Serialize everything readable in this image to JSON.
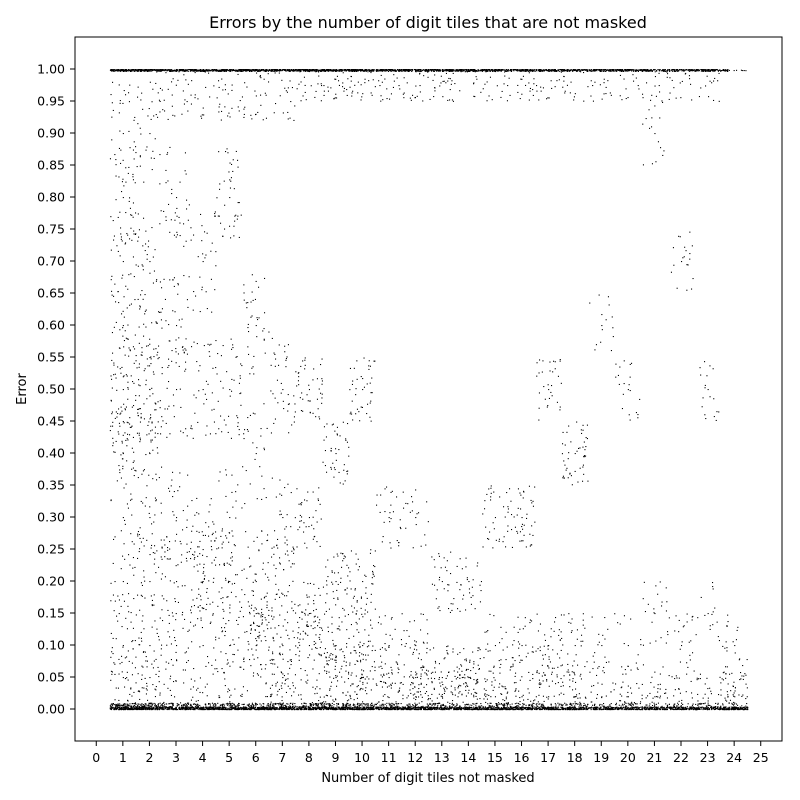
{
  "chart_data": {
    "type": "scatter",
    "title": "Errors by the number of digit tiles that are not masked",
    "xlabel": "Number of digit tiles not masked",
    "ylabel": "Error",
    "xlim": [
      -0.8,
      25.8
    ],
    "ylim": [
      -0.05,
      1.05
    ],
    "x_ticks": [
      0,
      1,
      2,
      3,
      4,
      5,
      6,
      7,
      8,
      9,
      10,
      11,
      12,
      13,
      14,
      15,
      16,
      17,
      18,
      19,
      20,
      21,
      22,
      23,
      24,
      25
    ],
    "x_tick_labels": [
      "0",
      "1",
      "2",
      "3",
      "4",
      "5",
      "6",
      "7",
      "8",
      "9",
      "10",
      "11",
      "12",
      "13",
      "14",
      "15",
      "16",
      "17",
      "18",
      "19",
      "20",
      "21",
      "22",
      "23",
      "24",
      "25"
    ],
    "y_ticks": [
      0.0,
      0.05,
      0.1,
      0.15,
      0.2,
      0.25,
      0.3,
      0.35,
      0.4,
      0.45,
      0.5,
      0.55,
      0.6,
      0.65,
      0.7,
      0.75,
      0.8,
      0.85,
      0.9,
      0.95,
      1.0
    ],
    "y_tick_labels": [
      "0.00",
      "0.05",
      "0.10",
      "0.15",
      "0.20",
      "0.25",
      "0.30",
      "0.35",
      "0.40",
      "0.45",
      "0.50",
      "0.55",
      "0.60",
      "0.65",
      "0.70",
      "0.75",
      "0.80",
      "0.85",
      "0.90",
      "0.95",
      "1.00"
    ],
    "grid": false,
    "marker": "pixel",
    "color": "#000000",
    "point_density_by_x": [
      {
        "x": 1,
        "points": [
          [
            1,
            0.0
          ],
          [
            1,
            0.05
          ],
          [
            1,
            0.1
          ],
          [
            1,
            0.2
          ],
          [
            1,
            0.3
          ],
          [
            1,
            0.4
          ],
          [
            1,
            0.45
          ],
          [
            1,
            0.5
          ],
          [
            1,
            0.52
          ],
          [
            1,
            0.6
          ],
          [
            1,
            0.7
          ],
          [
            1,
            0.8
          ],
          [
            1,
            0.9
          ],
          [
            1,
            1.0
          ]
        ]
      },
      {
        "x": 2,
        "points": [
          [
            2,
            0.0
          ],
          [
            2,
            0.05
          ],
          [
            2,
            0.1
          ],
          [
            2,
            0.2
          ],
          [
            2,
            0.3
          ],
          [
            2,
            0.4
          ],
          [
            2,
            0.49
          ],
          [
            2,
            0.5
          ],
          [
            2,
            0.55
          ],
          [
            2,
            0.7
          ],
          [
            2,
            0.9
          ],
          [
            2,
            1.0
          ]
        ]
      },
      {
        "x": 3,
        "points": [
          [
            3,
            0.0
          ],
          [
            3,
            0.1
          ],
          [
            3,
            0.2
          ],
          [
            3,
            0.3
          ],
          [
            3,
            0.5
          ],
          [
            3,
            0.6
          ],
          [
            3,
            0.8
          ],
          [
            3,
            1.0
          ]
        ]
      },
      {
        "x": 4,
        "points": [
          [
            4,
            0.0
          ],
          [
            4,
            0.1
          ],
          [
            4,
            0.2
          ],
          [
            4,
            0.25
          ],
          [
            4,
            0.5
          ],
          [
            4,
            0.7
          ],
          [
            4,
            1.0
          ]
        ]
      },
      {
        "x": 5,
        "points": [
          [
            5,
            0.0
          ],
          [
            5,
            0.1
          ],
          [
            5,
            0.2
          ],
          [
            5,
            0.3
          ],
          [
            5,
            0.5
          ],
          [
            5,
            0.8
          ],
          [
            5,
            1.0
          ]
        ]
      },
      {
        "x": 6,
        "points": [
          [
            6,
            0.0
          ],
          [
            6,
            0.1
          ],
          [
            6,
            0.15
          ],
          [
            6,
            0.2
          ],
          [
            6,
            0.4
          ],
          [
            6,
            0.6
          ],
          [
            6,
            1.0
          ]
        ]
      },
      {
        "x": 7,
        "points": [
          [
            7,
            0.0
          ],
          [
            7,
            0.05
          ],
          [
            7,
            0.1
          ],
          [
            7,
            0.18
          ],
          [
            7,
            0.3
          ],
          [
            7,
            0.5
          ],
          [
            7,
            1.0
          ]
        ]
      },
      {
        "x": 8,
        "points": [
          [
            8,
            0.0
          ],
          [
            8,
            0.1
          ],
          [
            8,
            0.15
          ],
          [
            8,
            0.3
          ],
          [
            8,
            0.5
          ],
          [
            8,
            1.0
          ]
        ]
      },
      {
        "x": 9,
        "points": [
          [
            9,
            0.0
          ],
          [
            9,
            0.05
          ],
          [
            9,
            0.1
          ],
          [
            9,
            0.2
          ],
          [
            9,
            0.4
          ],
          [
            9,
            1.0
          ]
        ]
      },
      {
        "x": 10,
        "points": [
          [
            10,
            0.0
          ],
          [
            10,
            0.05
          ],
          [
            10,
            0.1
          ],
          [
            10,
            0.2
          ],
          [
            10,
            0.5
          ],
          [
            10,
            1.0
          ]
        ]
      },
      {
        "x": 11,
        "points": [
          [
            11,
            0.0
          ],
          [
            11,
            0.05
          ],
          [
            11,
            0.1
          ],
          [
            11,
            0.3
          ],
          [
            11,
            1.0
          ]
        ]
      },
      {
        "x": 12,
        "points": [
          [
            12,
            0.0
          ],
          [
            12,
            0.02
          ],
          [
            12,
            0.05
          ],
          [
            12,
            0.1
          ],
          [
            12,
            0.3
          ],
          [
            12,
            1.0
          ]
        ]
      },
      {
        "x": 13,
        "points": [
          [
            13,
            0.0
          ],
          [
            13,
            0.02
          ],
          [
            13,
            0.05
          ],
          [
            13,
            0.2
          ],
          [
            13,
            1.0
          ]
        ]
      },
      {
        "x": 14,
        "points": [
          [
            14,
            0.0
          ],
          [
            14,
            0.03
          ],
          [
            14,
            0.05
          ],
          [
            14,
            0.2
          ],
          [
            14,
            1.0
          ]
        ]
      },
      {
        "x": 15,
        "points": [
          [
            15,
            0.0
          ],
          [
            15,
            0.02
          ],
          [
            15,
            0.1
          ],
          [
            15,
            0.3
          ],
          [
            15,
            1.0
          ]
        ]
      },
      {
        "x": 16,
        "points": [
          [
            16,
            0.0
          ],
          [
            16,
            0.02
          ],
          [
            16,
            0.1
          ],
          [
            16,
            0.3
          ],
          [
            16,
            1.0
          ]
        ]
      },
      {
        "x": 17,
        "points": [
          [
            17,
            0.0
          ],
          [
            17,
            0.02
          ],
          [
            17,
            0.1
          ],
          [
            17,
            0.5
          ],
          [
            17,
            1.0
          ]
        ]
      },
      {
        "x": 18,
        "points": [
          [
            18,
            0.0
          ],
          [
            18,
            0.02
          ],
          [
            18,
            0.1
          ],
          [
            18,
            0.4
          ],
          [
            18,
            1.0
          ]
        ]
      },
      {
        "x": 19,
        "points": [
          [
            19,
            0.0
          ],
          [
            19,
            0.02
          ],
          [
            19,
            0.1
          ],
          [
            19,
            0.6
          ],
          [
            19,
            1.0
          ]
        ]
      },
      {
        "x": 20,
        "points": [
          [
            20,
            0.0
          ],
          [
            20,
            0.02
          ],
          [
            20,
            0.1
          ],
          [
            20,
            0.5
          ],
          [
            20,
            1.0
          ]
        ]
      },
      {
        "x": 21,
        "points": [
          [
            21,
            0.0
          ],
          [
            21,
            0.02
          ],
          [
            21,
            0.15
          ],
          [
            21,
            0.9
          ],
          [
            21,
            1.0
          ]
        ]
      },
      {
        "x": 22,
        "points": [
          [
            22,
            0.0
          ],
          [
            22,
            0.01
          ],
          [
            22,
            0.1
          ],
          [
            22,
            0.7
          ],
          [
            22,
            1.0
          ]
        ]
      },
      {
        "x": 23,
        "points": [
          [
            23,
            0.0
          ],
          [
            23,
            0.01
          ],
          [
            23,
            0.15
          ],
          [
            23,
            0.5
          ],
          [
            23,
            1.0
          ]
        ]
      },
      {
        "x": 24,
        "points": [
          [
            24,
            0.0
          ],
          [
            24,
            0.01
          ],
          [
            24,
            0.02
          ],
          [
            24,
            0.1
          ]
        ]
      }
    ]
  }
}
